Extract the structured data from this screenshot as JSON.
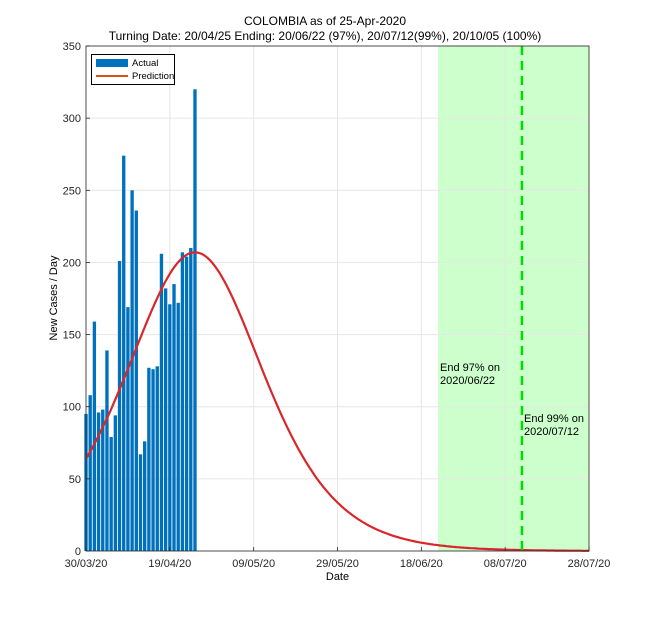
{
  "chart_data": {
    "type": "bar",
    "title": "COLOMBIA as of 25-Apr-2020",
    "subtitle": "Turning Date: 20/04/25  Ending: 20/06/22 (97%), 20/07/12(99%), 20/10/05 (100%)",
    "xlabel": "Date",
    "ylabel": "New Cases / Day",
    "ylim": [
      0,
      350
    ],
    "xlim": [
      "2020-03-30",
      "2020-07-28"
    ],
    "yticks": [
      0,
      50,
      100,
      150,
      200,
      250,
      300,
      350
    ],
    "xticks": [
      "30/03/20",
      "19/04/20",
      "09/05/20",
      "29/05/20",
      "18/06/20",
      "08/07/20",
      "28/07/20"
    ],
    "grid": true,
    "legend_position": "top-left",
    "legend": [
      "Actual",
      "Prediction"
    ],
    "colors": {
      "actual": "#0072BD",
      "prediction": "#D9262B",
      "shade": "#CCFFCC",
      "end_line": "#00DD00"
    },
    "series": [
      {
        "name": "Actual",
        "type": "bar",
        "x": [
          "2020-03-30",
          "2020-03-31",
          "2020-04-01",
          "2020-04-02",
          "2020-04-03",
          "2020-04-04",
          "2020-04-05",
          "2020-04-06",
          "2020-04-07",
          "2020-04-08",
          "2020-04-09",
          "2020-04-10",
          "2020-04-11",
          "2020-04-12",
          "2020-04-13",
          "2020-04-14",
          "2020-04-15",
          "2020-04-16",
          "2020-04-17",
          "2020-04-18",
          "2020-04-19",
          "2020-04-20",
          "2020-04-21",
          "2020-04-22",
          "2020-04-23",
          "2020-04-24",
          "2020-04-25"
        ],
        "values": [
          95,
          108,
          159,
          96,
          98,
          139,
          79,
          94,
          201,
          274,
          169,
          250,
          236,
          67,
          76,
          127,
          126,
          128,
          206,
          182,
          171,
          185,
          172,
          207,
          204,
          210,
          320
        ]
      },
      {
        "name": "Prediction",
        "type": "line",
        "peak_date": "2020-04-25",
        "peak_value": 207
      }
    ],
    "annotations": [
      {
        "text_line1": "End 97% on",
        "text_line2": "2020/06/22",
        "date": "2020-06-22"
      },
      {
        "text_line1": "End 99% on",
        "text_line2": "2020/07/12",
        "date": "2020-07-12"
      }
    ],
    "shaded_region": {
      "from": "2020-06-22",
      "to": "2020-07-28"
    },
    "vertical_line": {
      "date": "2020-07-12",
      "style": "dashed"
    }
  }
}
